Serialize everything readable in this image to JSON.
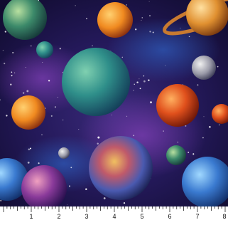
{
  "ruler": {
    "labels": [
      "1",
      "2",
      "3",
      "4",
      "5",
      "6",
      "7",
      "8"
    ]
  }
}
